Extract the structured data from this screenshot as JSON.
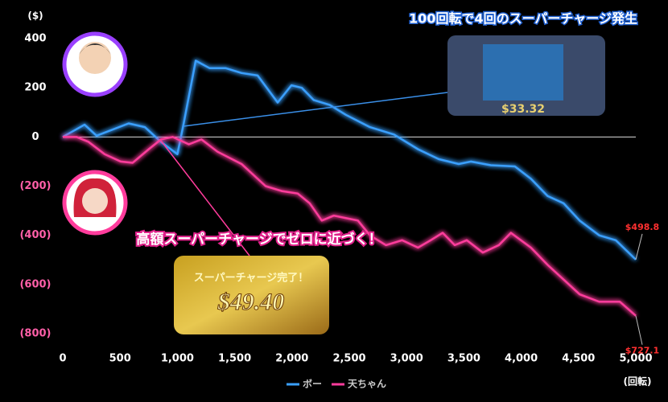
{
  "chart_data": {
    "type": "line",
    "title": "100回転で4回のスーパーチャージ発生",
    "callout": "高額スーパーチャージでゼロに近づく！",
    "y_unit": "($)",
    "x_unit": "(回転)",
    "xlim": [
      0,
      5000
    ],
    "xticks": [
      0,
      500,
      {
        "value": 1000,
        "label": "1,000"
      },
      {
        "value": 1500,
        "label": "1,500"
      },
      {
        "value": 2000,
        "label": "2,000"
      },
      {
        "value": 2500,
        "label": "2,500"
      },
      {
        "value": 3000,
        "label": "3,000"
      },
      {
        "value": 3500,
        "label": "3,500"
      },
      {
        "value": 4000,
        "label": "4,000"
      },
      {
        "value": 4500,
        "label": "4,500"
      },
      {
        "value": 5000,
        "label": "5,000"
      }
    ],
    "ylim": [
      -800,
      400
    ],
    "yticks": [
      400,
      200,
      0,
      {
        "value": -200,
        "label": "(200)"
      },
      {
        "value": -400,
        "label": "(400)"
      },
      {
        "value": -600,
        "label": "(600)"
      },
      {
        "value": -800,
        "label": "(800)"
      }
    ],
    "series": [
      {
        "name": "ボー",
        "color": "#3aa0ff",
        "x": [
          0,
          190,
          295,
          575,
          716,
          857,
          1000,
          1053,
          1160,
          1280,
          1420,
          1560,
          1700,
          1875,
          1995,
          2085,
          2190,
          2330,
          2470,
          2680,
          2890,
          3100,
          3280,
          3455,
          3560,
          3735,
          3945,
          4085,
          4230,
          4370,
          4510,
          4680,
          4825,
          5000
        ],
        "values": [
          0,
          50,
          5,
          55,
          40,
          -20,
          -70,
          50,
          310,
          280,
          280,
          260,
          250,
          140,
          210,
          200,
          150,
          130,
          90,
          40,
          10,
          -50,
          -90,
          -110,
          -100,
          -115,
          -120,
          -170,
          -240,
          -270,
          -340,
          -400,
          -420,
          -498.8
        ]
      },
      {
        "name": "天ちゃん",
        "color": "#ff3c9c",
        "x": [
          0,
          120,
          225,
          365,
          505,
          610,
          750,
          857,
          960,
          1100,
          1210,
          1350,
          1560,
          1770,
          1910,
          2050,
          2155,
          2260,
          2365,
          2470,
          2575,
          2680,
          2820,
          2960,
          3100,
          3210,
          3315,
          3420,
          3525,
          3665,
          3805,
          3910,
          4085,
          4230,
          4370,
          4510,
          4680,
          4860,
          5000
        ],
        "values": [
          0,
          0,
          -20,
          -70,
          -100,
          -105,
          -50,
          -10,
          0,
          -30,
          -10,
          -60,
          -110,
          -200,
          -220,
          -230,
          -270,
          -340,
          -320,
          -330,
          -340,
          -400,
          -440,
          -420,
          -450,
          -420,
          -390,
          -440,
          -420,
          -470,
          -440,
          -390,
          -450,
          -520,
          -580,
          -640,
          -670,
          -670,
          -727.1
        ]
      }
    ],
    "annotations": [
      {
        "text": "$498.8",
        "x": 5000,
        "y": -498.8,
        "color": "#ff3030"
      },
      {
        "text": "$727.1",
        "x": 5000,
        "y": -727.1,
        "color": "#ff3030"
      }
    ],
    "insets": [
      {
        "caption": "スーパーチャージ完了！",
        "amount": "$49.40"
      },
      {
        "amount": "$33.32"
      }
    ]
  }
}
